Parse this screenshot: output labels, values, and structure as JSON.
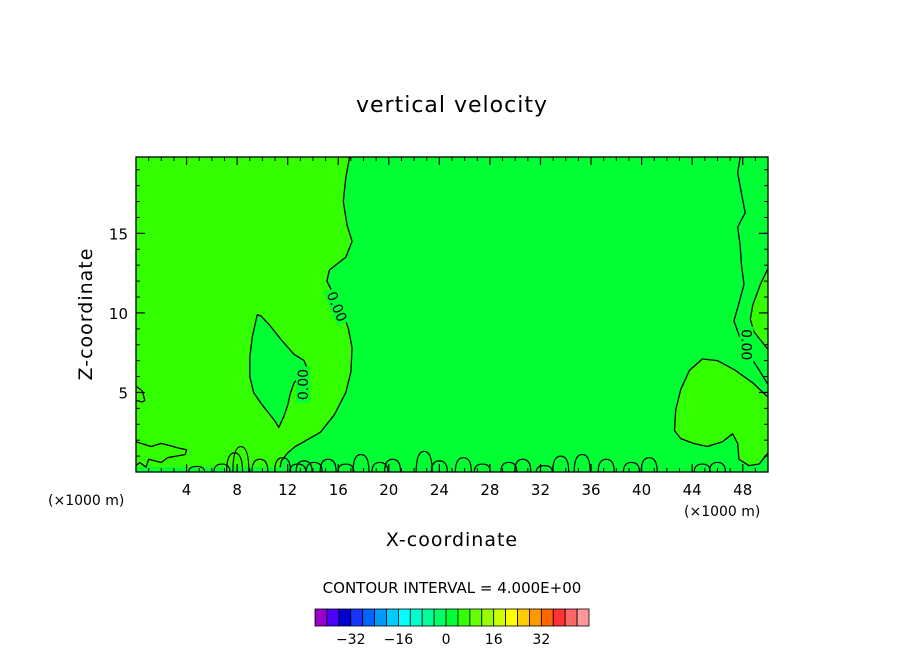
{
  "chart_data": {
    "type": "heatmap",
    "title": "vertical velocity",
    "xlabel": "X-coordinate",
    "ylabel": "Z-coordinate",
    "x_unit": "(×1000 m)",
    "x_unit_right": "(×1000 m)",
    "xlim": [
      0,
      50
    ],
    "ylim": [
      0,
      19.8
    ],
    "x_ticks": [
      4,
      8,
      12,
      16,
      20,
      24,
      28,
      32,
      36,
      40,
      44,
      48
    ],
    "y_ticks": [
      5,
      10,
      15
    ],
    "contour_interval_text": "CONTOUR INTERVAL = 4.000E+00",
    "contour_labels": [
      "0.00",
      "0.00",
      "0.00"
    ],
    "field": {
      "background_color": "#00ff33",
      "positive_color": "#33ff00",
      "description_level": "values near 0 throughout; slightly positive regions at left (x 0–17) and lower right (x 42–50)"
    },
    "contours": [
      {
        "label": "0.00",
        "points": [
          [
            16.9,
            19.8
          ],
          [
            16.6,
            18.5
          ],
          [
            16.4,
            17
          ],
          [
            16.7,
            15.5
          ],
          [
            17.1,
            14.5
          ],
          [
            16.6,
            13.5
          ],
          [
            15.3,
            12.7
          ],
          [
            15.1,
            12
          ],
          [
            15.6,
            11.2
          ],
          [
            16.3,
            10.2
          ],
          [
            16.8,
            9.0
          ],
          [
            17.1,
            7.8
          ],
          [
            17.0,
            6.3
          ],
          [
            16.6,
            5.0
          ],
          [
            15.7,
            3.6
          ],
          [
            14.6,
            2.5
          ],
          [
            13.5,
            2.0
          ],
          [
            12.6,
            1.6
          ],
          [
            12.0,
            1.2
          ],
          [
            11.5,
            0.7
          ],
          [
            11.4,
            0.3
          ]
        ]
      },
      {
        "label": "0.00",
        "points": [
          [
            9.6,
            9.9
          ],
          [
            9.9,
            9.8
          ],
          [
            10.6,
            9.2
          ],
          [
            11.5,
            8.3
          ],
          [
            12.5,
            7.4
          ],
          [
            13.3,
            7.0
          ],
          [
            13.5,
            6.6
          ],
          [
            13.1,
            6.1
          ],
          [
            12.5,
            5.6
          ],
          [
            12.2,
            4.9
          ],
          [
            12.0,
            4.2
          ],
          [
            11.7,
            3.5
          ],
          [
            11.3,
            2.8
          ],
          [
            11.0,
            3.2
          ],
          [
            10.5,
            3.7
          ],
          [
            10.0,
            4.2
          ],
          [
            9.3,
            5.0
          ],
          [
            9.0,
            6.0
          ],
          [
            9.0,
            7.2
          ],
          [
            9.2,
            8.5
          ],
          [
            9.6,
            9.9
          ]
        ]
      },
      {
        "label": "0.00",
        "points": [
          [
            47.8,
            19.8
          ],
          [
            47.6,
            18.8
          ],
          [
            47.9,
            17.5
          ],
          [
            48.2,
            16.3
          ],
          [
            47.6,
            15.4
          ],
          [
            47.8,
            14.2
          ],
          [
            47.9,
            13.0
          ],
          [
            48.1,
            11.8
          ],
          [
            47.7,
            10.6
          ],
          [
            47.3,
            9.5
          ],
          [
            47.8,
            8.4
          ],
          [
            48.5,
            7.4
          ],
          [
            49.3,
            6.4
          ],
          [
            50,
            5.5
          ]
        ]
      },
      {
        "label": "",
        "points": [
          [
            50,
            12.8
          ],
          [
            49.4,
            11.8
          ],
          [
            48.8,
            10.5
          ],
          [
            48.6,
            9.6
          ],
          [
            48.9,
            8.8
          ],
          [
            49.5,
            8.2
          ],
          [
            50,
            7.7
          ]
        ]
      },
      {
        "label": "",
        "points": [
          [
            50,
            4.7
          ],
          [
            48.8,
            5.6
          ],
          [
            47.4,
            6.4
          ],
          [
            46.0,
            7.0
          ],
          [
            44.8,
            7.1
          ],
          [
            43.8,
            6.4
          ],
          [
            43.1,
            5.2
          ],
          [
            42.7,
            3.9
          ],
          [
            42.6,
            2.6
          ],
          [
            43.1,
            2.1
          ],
          [
            44.1,
            1.8
          ],
          [
            45.2,
            1.6
          ],
          [
            46.4,
            1.9
          ],
          [
            47.2,
            2.4
          ],
          [
            47.6,
            1.8
          ],
          [
            47.7,
            0.8
          ],
          [
            48.5,
            0.4
          ],
          [
            49.3,
            0.5
          ],
          [
            50,
            1.2
          ]
        ]
      },
      {
        "label": "",
        "points": [
          [
            0,
            5.4
          ],
          [
            0.5,
            5.1
          ],
          [
            0.7,
            4.5
          ],
          [
            0.5,
            4.4
          ],
          [
            0,
            4.5
          ]
        ]
      },
      {
        "label": "",
        "points": [
          [
            0,
            1.9
          ],
          [
            1.2,
            1.6
          ],
          [
            2.0,
            1.8
          ],
          [
            3.4,
            1.5
          ],
          [
            4.0,
            1.4
          ],
          [
            3.9,
            1.1
          ],
          [
            2.5,
            0.9
          ],
          [
            2.0,
            0.6
          ],
          [
            1.0,
            0.8
          ],
          [
            0.8,
            0.3
          ],
          [
            0.3,
            0.6
          ],
          [
            0,
            0.4
          ]
        ]
      }
    ],
    "colorbar": {
      "colors": [
        "#9900cc",
        "#4d00ff",
        "#0000cc",
        "#1a33ff",
        "#0066ff",
        "#0099ff",
        "#00ccff",
        "#00ffff",
        "#00ffcc",
        "#00ff99",
        "#00ff66",
        "#00ff33",
        "#33ff00",
        "#66ff00",
        "#99ff00",
        "#ccff00",
        "#ffff00",
        "#ffcc00",
        "#ff9900",
        "#ff6600",
        "#ff3333",
        "#ff6666",
        "#ff9999"
      ],
      "tick_labels": [
        "−32",
        "−16",
        "0",
        "16",
        "32"
      ],
      "tick_values": [
        -32,
        -16,
        0,
        16,
        32
      ]
    }
  }
}
